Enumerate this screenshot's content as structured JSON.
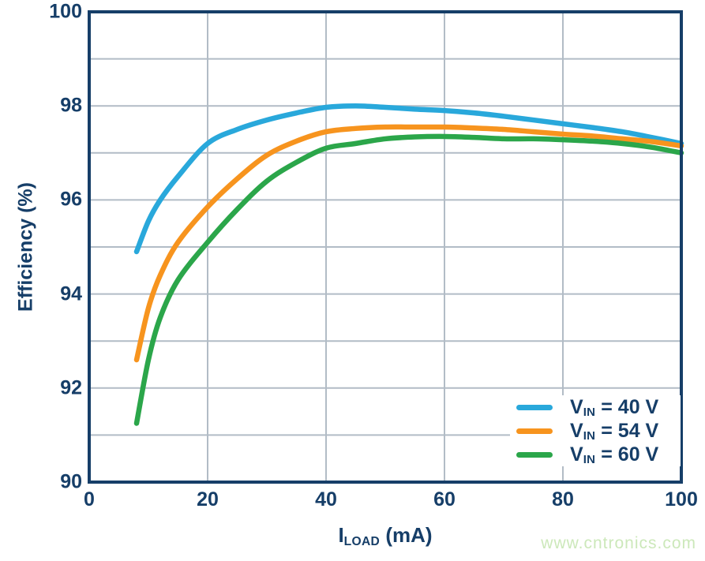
{
  "colors": {
    "axis_text": "#163E68",
    "frame": "#163E68",
    "grid": "#B2BCC6",
    "background": "#FFFFFF",
    "watermark_green": "#CCE8BA"
  },
  "watermark": {
    "text": "www.cntronics.com"
  },
  "chart_data": {
    "type": "line",
    "title": "",
    "xlabel": {
      "pre": "I",
      "sub": "LOAD",
      "post": " (mA)"
    },
    "ylabel": "Efficiency (%)",
    "xlim": [
      0,
      100
    ],
    "ylim": [
      90,
      100
    ],
    "xticks": [
      0,
      20,
      40,
      60,
      80,
      100
    ],
    "yticks": [
      100,
      98,
      96,
      94,
      92,
      90
    ],
    "grid": true,
    "grid_x_step": 20,
    "grid_y_step": 1,
    "legend_position": "inside-bottom-right",
    "x": [
      8,
      10,
      12,
      15,
      20,
      25,
      30,
      35,
      40,
      45,
      50,
      55,
      60,
      65,
      70,
      75,
      80,
      85,
      90,
      95,
      100
    ],
    "series": [
      {
        "id": "vin-40",
        "name": "VIN = 40 V",
        "label": {
          "pre": "V",
          "sub": "IN",
          "post": " = 40 V"
        },
        "color": "#29A8DB",
        "values": [
          94.9,
          95.55,
          96.0,
          96.5,
          97.2,
          97.5,
          97.7,
          97.85,
          97.97,
          98.0,
          97.97,
          97.93,
          97.9,
          97.85,
          97.78,
          97.7,
          97.62,
          97.54,
          97.45,
          97.33,
          97.2
        ]
      },
      {
        "id": "vin-54",
        "name": "VIN = 54 V",
        "label": {
          "pre": "V",
          "sub": "IN",
          "post": " = 54 V"
        },
        "color": "#F7941E",
        "values": [
          92.6,
          93.7,
          94.4,
          95.1,
          95.85,
          96.45,
          96.95,
          97.25,
          97.45,
          97.52,
          97.55,
          97.55,
          97.55,
          97.53,
          97.5,
          97.45,
          97.4,
          97.36,
          97.3,
          97.24,
          97.15
        ]
      },
      {
        "id": "vin-60",
        "name": "VIN = 60 V",
        "label": {
          "pre": "V",
          "sub": "IN",
          "post": " = 60 V"
        },
        "color": "#2BA64A",
        "values": [
          91.25,
          92.6,
          93.5,
          94.3,
          95.1,
          95.8,
          96.4,
          96.8,
          97.1,
          97.2,
          97.3,
          97.34,
          97.35,
          97.33,
          97.3,
          97.3,
          97.28,
          97.25,
          97.2,
          97.12,
          97.0
        ]
      }
    ]
  }
}
